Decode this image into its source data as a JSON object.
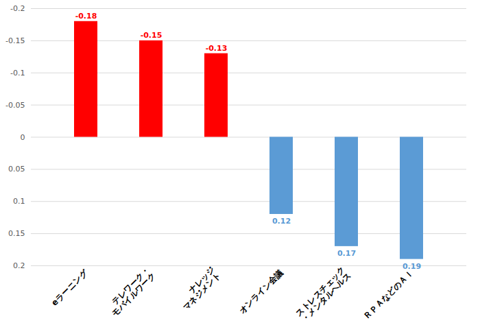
{
  "chart_data": {
    "type": "bar",
    "categories": [
      "eラーニング",
      "テレワーク・\nモバイルワーク",
      "ナレッジ\nマネジメント",
      "オンライン会議",
      "ストレスチェック\n・メンタルヘルス",
      "ＲＰＡなどのＡＩ"
    ],
    "values": [
      -0.18,
      -0.15,
      -0.13,
      0.12,
      0.17,
      0.19
    ],
    "colors": [
      "#ff0000",
      "#ff0000",
      "#ff0000",
      "#5b9bd5",
      "#5b9bd5",
      "#5b9bd5"
    ],
    "ylim": [
      0.2,
      -0.2
    ],
    "yticks": [
      -0.2,
      -0.15,
      -0.1,
      -0.05,
      0,
      0.05,
      0.1,
      0.15,
      0.2
    ],
    "grid": true,
    "data_labels": true
  }
}
